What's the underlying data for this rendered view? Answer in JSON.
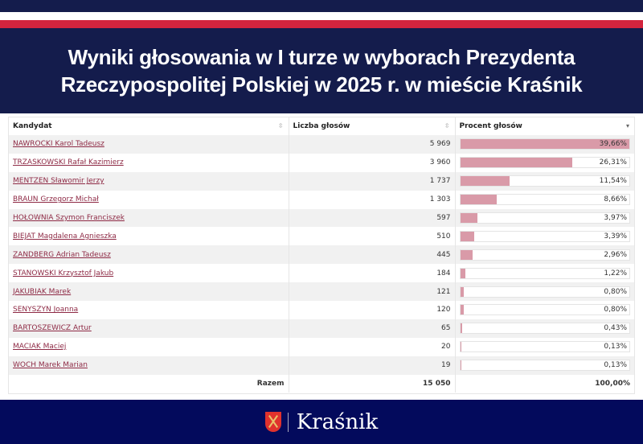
{
  "title": "Wyniki głosowania w I turze w wyborach Prezydenta Rzeczypospolitej Polskiej w 2025 r. w mieście Kraśnik",
  "table": {
    "headers": [
      "Kandydat",
      "Liczba głosów",
      "Procent głosów"
    ],
    "rows": [
      {
        "name": "NAWROCKI Karol Tadeusz",
        "votes": "5 969",
        "percent": "39,66%",
        "value": 39.66
      },
      {
        "name": "TRZASKOWSKI Rafał Kazimierz",
        "votes": "3 960",
        "percent": "26,31%",
        "value": 26.31
      },
      {
        "name": "MENTZEN Sławomir Jerzy",
        "votes": "1 737",
        "percent": "11,54%",
        "value": 11.54
      },
      {
        "name": "BRAUN Grzegorz Michał",
        "votes": "1 303",
        "percent": "8,66%",
        "value": 8.66
      },
      {
        "name": "HOŁOWNIA Szymon Franciszek",
        "votes": "597",
        "percent": "3,97%",
        "value": 3.97
      },
      {
        "name": "BIEJAT Magdalena Agnieszka",
        "votes": "510",
        "percent": "3,39%",
        "value": 3.39
      },
      {
        "name": "ZANDBERG Adrian Tadeusz",
        "votes": "445",
        "percent": "2,96%",
        "value": 2.96
      },
      {
        "name": "STANOWSKI Krzysztof Jakub",
        "votes": "184",
        "percent": "1,22%",
        "value": 1.22
      },
      {
        "name": "JAKUBIAK Marek",
        "votes": "121",
        "percent": "0,80%",
        "value": 0.8
      },
      {
        "name": "SENYSZYN Joanna",
        "votes": "120",
        "percent": "0,80%",
        "value": 0.8
      },
      {
        "name": "BARTOSZEWICZ Artur",
        "votes": "65",
        "percent": "0,43%",
        "value": 0.43
      },
      {
        "name": "MACIAK Maciej",
        "votes": "20",
        "percent": "0,13%",
        "value": 0.13
      },
      {
        "name": "WOCH Marek Marian",
        "votes": "19",
        "percent": "0,13%",
        "value": 0.13
      }
    ],
    "total": {
      "label": "Razem",
      "votes": "15 050",
      "percent": "100,00%"
    }
  },
  "footer": {
    "brand": "Kraśnik"
  },
  "colors": {
    "navy": "#141c4c",
    "red": "#d3243e",
    "bar": "#d99aa8",
    "link": "#8e2a45",
    "footer": "#030a5c"
  }
}
